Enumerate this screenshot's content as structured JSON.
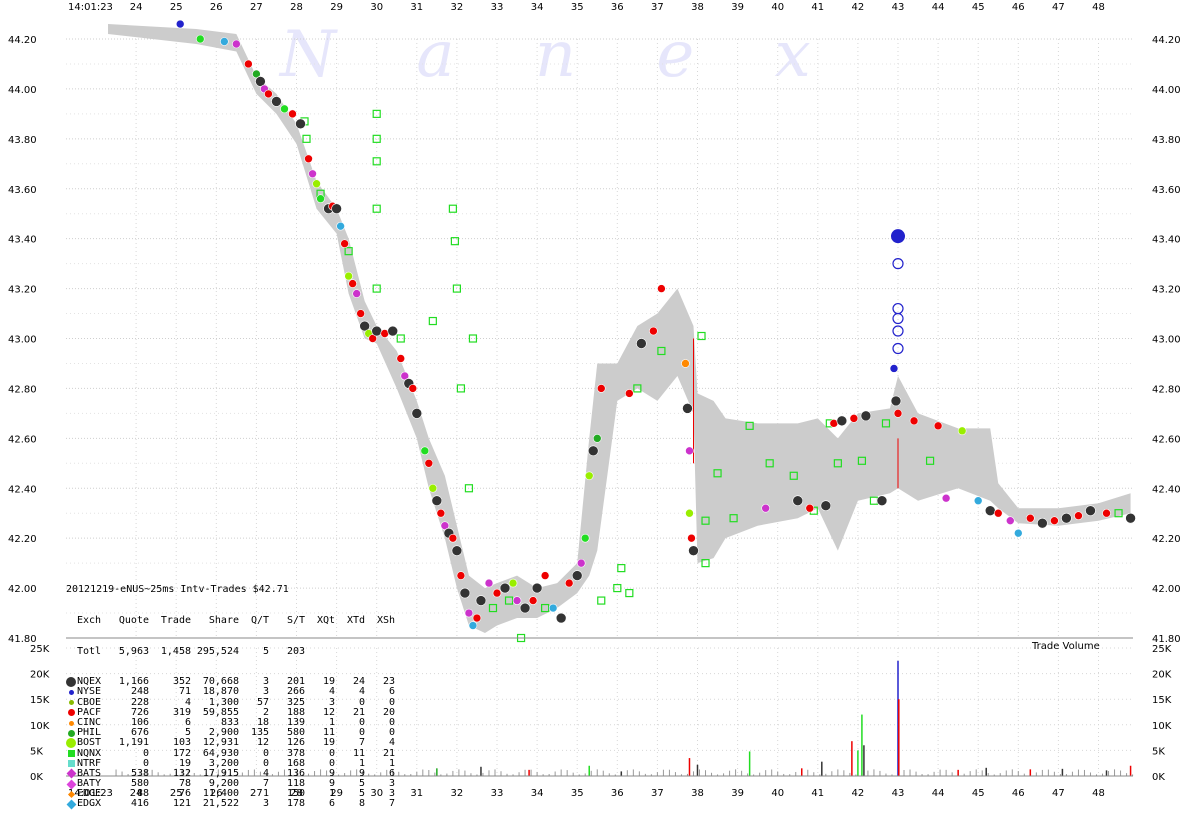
{
  "watermark": "N a n e x",
  "panel": {
    "title": "20121219-eNUS~25ms Intv-Trades $42.71",
    "header": [
      "Exch",
      "Quote",
      "Trade",
      "Share",
      "Q/T",
      "S/T",
      "XQt",
      "XTd",
      "XSh"
    ],
    "total": [
      "Totl",
      "5,963",
      "1,458",
      "295,524",
      "5",
      "203",
      "",
      "",
      ""
    ],
    "rows": [
      {
        "exch": "NQEX",
        "vals": [
          "1,166",
          "352",
          "70,668",
          "3",
          "201",
          "19",
          "24",
          "23"
        ],
        "color": "#333333",
        "marker": "circle-big"
      },
      {
        "exch": "NYSE",
        "vals": [
          "248",
          "71",
          "18,870",
          "3",
          "266",
          "4",
          "4",
          "6"
        ],
        "color": "#2222cc",
        "marker": "circle-small"
      },
      {
        "exch": "CBOE",
        "vals": [
          "228",
          "4",
          "1,300",
          "57",
          "325",
          "3",
          "0",
          "0"
        ],
        "color": "#88bb00",
        "marker": "circle-small"
      },
      {
        "exch": "PACF",
        "vals": [
          "726",
          "319",
          "59,855",
          "2",
          "188",
          "12",
          "21",
          "20"
        ],
        "color": "#ee0000",
        "marker": "circle"
      },
      {
        "exch": "CINC",
        "vals": [
          "106",
          "6",
          "833",
          "18",
          "139",
          "1",
          "0",
          "0"
        ],
        "color": "#ff8800",
        "marker": "circle-small"
      },
      {
        "exch": "PHIL",
        "vals": [
          "676",
          "5",
          "2,900",
          "135",
          "580",
          "11",
          "0",
          "0"
        ],
        "color": "#22aa22",
        "marker": "circle"
      },
      {
        "exch": "BOST",
        "vals": [
          "1,191",
          "103",
          "12,931",
          "12",
          "126",
          "19",
          "7",
          "4"
        ],
        "color": "#99ee00",
        "marker": "circle-big"
      },
      {
        "exch": "NQNX",
        "vals": [
          "0",
          "172",
          "64,930",
          "0",
          "378",
          "0",
          "11",
          "21"
        ],
        "color": "#22dd22",
        "marker": "square"
      },
      {
        "exch": "NTRF",
        "vals": [
          "0",
          "19",
          "3,200",
          "0",
          "168",
          "0",
          "1",
          "1"
        ],
        "color": "#66ddcc",
        "marker": "square"
      },
      {
        "exch": "BATS",
        "vals": [
          "538",
          "132",
          "17,915",
          "4",
          "136",
          "9",
          "9",
          "6"
        ],
        "color": "#cc33cc",
        "marker": "diamond"
      },
      {
        "exch": "BATY",
        "vals": [
          "580",
          "78",
          "9,200",
          "7",
          "118",
          "9",
          "5",
          "3"
        ],
        "color": "#dd44dd",
        "marker": "diamond"
      },
      {
        "exch": "EDGE",
        "vals": [
          "88",
          "76",
          "11,400",
          "1",
          "150",
          "1",
          "5",
          "3"
        ],
        "color": "#ff8800",
        "marker": "diamond-small"
      },
      {
        "exch": "EDGX",
        "vals": [
          "416",
          "121",
          "21,522",
          "3",
          "178",
          "6",
          "8",
          "7"
        ],
        "color": "#33aadd",
        "marker": "diamond"
      }
    ]
  },
  "vol_label": "Trade Volume",
  "colors": {
    "band": "#cccccc",
    "quote_sq": "#22dd22",
    "red": "#ee0000",
    "dark": "#333333",
    "blue": "#2222cc"
  },
  "chart_data": {
    "type": "scatter",
    "title": "20121219-eNUS~25ms Intv-Trades $42.71",
    "time_start_label": "14:01:23",
    "x_ticks": [
      "24",
      "25",
      "26",
      "27",
      "28",
      "29",
      "30",
      "31",
      "32",
      "33",
      "34",
      "35",
      "36",
      "37",
      "38",
      "39",
      "40",
      "41",
      "42",
      "43",
      "44",
      "45",
      "46",
      "47",
      "48"
    ],
    "price_ticks": [
      "44.20",
      "44.00",
      "43.80",
      "43.60",
      "43.40",
      "43.20",
      "43.00",
      "42.80",
      "42.60",
      "42.40",
      "42.20",
      "42.00",
      "41.80"
    ],
    "ylim": [
      41.8,
      44.2
    ],
    "volume_ticks": [
      "25K",
      "20K",
      "15K",
      "10K",
      "5K",
      "0K"
    ],
    "volume_ylim": [
      0,
      25000
    ],
    "grid": true,
    "band": [
      [
        23.3,
        44.26,
        44.22
      ],
      [
        25.5,
        44.24,
        44.18
      ],
      [
        26.5,
        44.22,
        44.15
      ],
      [
        27.0,
        44.05,
        43.98
      ],
      [
        27.5,
        43.98,
        43.9
      ],
      [
        28.0,
        43.86,
        43.78
      ],
      [
        28.5,
        43.63,
        43.52
      ],
      [
        29.0,
        43.52,
        43.42
      ],
      [
        29.3,
        43.4,
        43.18
      ],
      [
        29.7,
        43.15,
        43.0
      ],
      [
        30.0,
        43.05,
        42.98
      ],
      [
        30.5,
        42.95,
        42.8
      ],
      [
        31.0,
        42.75,
        42.6
      ],
      [
        31.3,
        42.6,
        42.4
      ],
      [
        31.7,
        42.45,
        42.2
      ],
      [
        32.0,
        42.25,
        42.0
      ],
      [
        32.3,
        42.05,
        41.85
      ],
      [
        32.7,
        42.0,
        41.82
      ],
      [
        33.0,
        42.02,
        41.85
      ],
      [
        33.5,
        42.05,
        41.88
      ],
      [
        34.0,
        42.0,
        41.88
      ],
      [
        34.5,
        42.02,
        41.92
      ],
      [
        35.0,
        42.1,
        41.98
      ],
      [
        35.3,
        42.6,
        42.05
      ],
      [
        35.5,
        42.9,
        42.15
      ],
      [
        36.0,
        42.9,
        42.75
      ],
      [
        36.5,
        43.05,
        42.8
      ],
      [
        37.0,
        43.1,
        42.75
      ],
      [
        37.5,
        43.2,
        42.85
      ],
      [
        37.9,
        43.05,
        42.7
      ],
      [
        38.0,
        42.78,
        42.1
      ],
      [
        38.4,
        42.75,
        42.12
      ],
      [
        38.7,
        42.68,
        42.2
      ],
      [
        39.5,
        42.66,
        42.25
      ],
      [
        40.5,
        42.66,
        42.28
      ],
      [
        41.0,
        42.68,
        42.32
      ],
      [
        41.5,
        42.6,
        42.15
      ],
      [
        42.0,
        42.7,
        42.35
      ],
      [
        42.8,
        42.72,
        42.38
      ],
      [
        43.0,
        42.85,
        42.4
      ],
      [
        43.5,
        42.7,
        42.35
      ],
      [
        44.5,
        42.64,
        42.4
      ],
      [
        45.3,
        42.64,
        42.35
      ],
      [
        45.5,
        42.42,
        42.32
      ],
      [
        46.0,
        42.32,
        42.26
      ],
      [
        47.0,
        42.32,
        42.25
      ],
      [
        48.0,
        42.34,
        42.27
      ],
      [
        48.8,
        42.38,
        42.3
      ]
    ],
    "trades": [
      [
        25.1,
        44.26,
        "#2222cc"
      ],
      [
        25.6,
        44.2,
        "#22dd22"
      ],
      [
        26.2,
        44.19,
        "#33aadd"
      ],
      [
        26.5,
        44.18,
        "#cc33cc"
      ],
      [
        26.8,
        44.1,
        "#ee0000"
      ],
      [
        27.0,
        44.06,
        "#22aa22"
      ],
      [
        27.1,
        44.03,
        "#333333"
      ],
      [
        27.2,
        44.0,
        "#cc33cc"
      ],
      [
        27.3,
        43.98,
        "#ee0000"
      ],
      [
        27.5,
        43.95,
        "#333333"
      ],
      [
        27.7,
        43.92,
        "#22dd22"
      ],
      [
        27.9,
        43.9,
        "#ee0000"
      ],
      [
        28.1,
        43.86,
        "#333333"
      ],
      [
        28.3,
        43.72,
        "#ee0000"
      ],
      [
        28.4,
        43.66,
        "#cc33cc"
      ],
      [
        28.5,
        43.62,
        "#99ee00"
      ],
      [
        28.6,
        43.56,
        "#22dd22"
      ],
      [
        28.8,
        43.52,
        "#333333"
      ],
      [
        28.9,
        43.53,
        "#ee0000"
      ],
      [
        29.0,
        43.52,
        "#333333"
      ],
      [
        29.1,
        43.45,
        "#33aadd"
      ],
      [
        29.2,
        43.38,
        "#ee0000"
      ],
      [
        29.3,
        43.25,
        "#99ee00"
      ],
      [
        29.4,
        43.22,
        "#ee0000"
      ],
      [
        29.5,
        43.18,
        "#cc33cc"
      ],
      [
        29.6,
        43.1,
        "#ee0000"
      ],
      [
        29.7,
        43.05,
        "#333333"
      ],
      [
        29.8,
        43.02,
        "#99ee00"
      ],
      [
        29.9,
        43.0,
        "#ee0000"
      ],
      [
        30.0,
        43.03,
        "#333333"
      ],
      [
        30.2,
        43.02,
        "#ee0000"
      ],
      [
        30.4,
        43.03,
        "#333333"
      ],
      [
        30.6,
        42.92,
        "#ee0000"
      ],
      [
        30.7,
        42.85,
        "#cc33cc"
      ],
      [
        30.8,
        42.82,
        "#333333"
      ],
      [
        30.9,
        42.8,
        "#ee0000"
      ],
      [
        31.0,
        42.7,
        "#333333"
      ],
      [
        31.2,
        42.55,
        "#22dd22"
      ],
      [
        31.3,
        42.5,
        "#ee0000"
      ],
      [
        31.4,
        42.4,
        "#99ee00"
      ],
      [
        31.5,
        42.35,
        "#333333"
      ],
      [
        31.6,
        42.3,
        "#ee0000"
      ],
      [
        31.7,
        42.25,
        "#cc33cc"
      ],
      [
        31.8,
        42.22,
        "#333333"
      ],
      [
        31.9,
        42.2,
        "#ee0000"
      ],
      [
        32.0,
        42.15,
        "#333333"
      ],
      [
        32.1,
        42.05,
        "#ee0000"
      ],
      [
        32.2,
        41.98,
        "#333333"
      ],
      [
        32.3,
        41.9,
        "#cc33cc"
      ],
      [
        32.4,
        41.85,
        "#33aadd"
      ],
      [
        32.5,
        41.88,
        "#ee0000"
      ],
      [
        32.6,
        41.95,
        "#333333"
      ],
      [
        32.8,
        42.02,
        "#cc33cc"
      ],
      [
        33.0,
        41.98,
        "#ee0000"
      ],
      [
        33.2,
        42.0,
        "#333333"
      ],
      [
        33.4,
        42.02,
        "#99ee00"
      ],
      [
        33.5,
        41.95,
        "#cc33cc"
      ],
      [
        33.7,
        41.92,
        "#333333"
      ],
      [
        33.9,
        41.95,
        "#ee0000"
      ],
      [
        34.0,
        42.0,
        "#333333"
      ],
      [
        34.2,
        42.05,
        "#ee0000"
      ],
      [
        34.4,
        41.92,
        "#33aadd"
      ],
      [
        34.6,
        41.88,
        "#333333"
      ],
      [
        34.8,
        42.02,
        "#ee0000"
      ],
      [
        35.0,
        42.05,
        "#333333"
      ],
      [
        35.1,
        42.1,
        "#cc33cc"
      ],
      [
        35.2,
        42.2,
        "#22dd22"
      ],
      [
        35.3,
        42.45,
        "#99ee00"
      ],
      [
        35.4,
        42.55,
        "#333333"
      ],
      [
        35.5,
        42.6,
        "#22aa22"
      ],
      [
        35.6,
        42.8,
        "#ee0000"
      ],
      [
        36.3,
        42.78,
        "#ee0000"
      ],
      [
        36.6,
        42.98,
        "#333333"
      ],
      [
        36.9,
        43.03,
        "#ee0000"
      ],
      [
        37.1,
        43.2,
        "#ee0000"
      ],
      [
        37.7,
        42.9,
        "#ff8800"
      ],
      [
        37.75,
        42.72,
        "#333333"
      ],
      [
        37.8,
        42.55,
        "#cc33cc"
      ],
      [
        37.8,
        42.3,
        "#99ee00"
      ],
      [
        37.85,
        42.2,
        "#ee0000"
      ],
      [
        37.9,
        42.15,
        "#333333"
      ],
      [
        39.7,
        42.32,
        "#cc33cc"
      ],
      [
        40.5,
        42.35,
        "#333333"
      ],
      [
        40.8,
        42.32,
        "#ee0000"
      ],
      [
        41.2,
        42.33,
        "#333333"
      ],
      [
        41.4,
        42.66,
        "#ee0000"
      ],
      [
        41.6,
        42.67,
        "#333333"
      ],
      [
        41.9,
        42.68,
        "#ee0000"
      ],
      [
        42.2,
        42.69,
        "#333333"
      ],
      [
        42.6,
        42.35,
        "#333333"
      ],
      [
        42.9,
        42.88,
        "#2222cc"
      ],
      [
        42.95,
        42.75,
        "#333333"
      ],
      [
        43.0,
        42.7,
        "#ee0000"
      ],
      [
        43.4,
        42.67,
        "#ee0000"
      ],
      [
        44.0,
        42.65,
        "#ee0000"
      ],
      [
        44.2,
        42.36,
        "#cc33cc"
      ],
      [
        44.6,
        42.63,
        "#99ee00"
      ],
      [
        45.0,
        42.35,
        "#33aadd"
      ],
      [
        45.3,
        42.31,
        "#333333"
      ],
      [
        45.5,
        42.3,
        "#ee0000"
      ],
      [
        45.8,
        42.27,
        "#cc33cc"
      ],
      [
        46.0,
        42.22,
        "#33aadd"
      ],
      [
        46.3,
        42.28,
        "#ee0000"
      ],
      [
        46.6,
        42.26,
        "#333333"
      ],
      [
        46.9,
        42.27,
        "#ee0000"
      ],
      [
        47.2,
        42.28,
        "#333333"
      ],
      [
        47.5,
        42.29,
        "#ee0000"
      ],
      [
        47.8,
        42.31,
        "#333333"
      ],
      [
        48.2,
        42.3,
        "#ee0000"
      ],
      [
        48.8,
        42.28,
        "#333333"
      ]
    ],
    "quotes": [
      [
        28.2,
        43.87,
        "#22dd22"
      ],
      [
        28.25,
        43.8,
        "#22dd22"
      ],
      [
        28.6,
        43.58,
        "#22dd22"
      ],
      [
        29.3,
        43.35,
        "#22dd22"
      ],
      [
        30.0,
        43.9,
        "#22dd22"
      ],
      [
        30.0,
        43.8,
        "#22dd22"
      ],
      [
        30.0,
        43.71,
        "#22dd22"
      ],
      [
        30.0,
        43.52,
        "#22dd22"
      ],
      [
        30.0,
        43.2,
        "#22dd22"
      ],
      [
        30.6,
        43.0,
        "#22dd22"
      ],
      [
        31.4,
        43.07,
        "#22dd22"
      ],
      [
        31.9,
        43.52,
        "#22dd22"
      ],
      [
        31.95,
        43.39,
        "#22dd22"
      ],
      [
        32.0,
        43.2,
        "#22dd22"
      ],
      [
        32.1,
        42.8,
        "#22dd22"
      ],
      [
        32.3,
        42.4,
        "#22dd22"
      ],
      [
        32.4,
        43.0,
        "#22dd22"
      ],
      [
        32.9,
        41.92,
        "#22dd22"
      ],
      [
        33.3,
        41.95,
        "#22dd22"
      ],
      [
        33.6,
        41.8,
        "#22dd22"
      ],
      [
        34.2,
        41.92,
        "#22dd22"
      ],
      [
        35.6,
        41.95,
        "#22dd22"
      ],
      [
        36.0,
        42.0,
        "#22dd22"
      ],
      [
        36.1,
        42.08,
        "#22dd22"
      ],
      [
        36.3,
        41.98,
        "#22dd22"
      ],
      [
        36.5,
        42.8,
        "#22dd22"
      ],
      [
        37.1,
        42.95,
        "#22dd22"
      ],
      [
        38.1,
        43.01,
        "#22dd22"
      ],
      [
        38.2,
        42.1,
        "#22dd22"
      ],
      [
        38.5,
        42.46,
        "#22dd22"
      ],
      [
        38.2,
        42.27,
        "#22dd22"
      ],
      [
        38.9,
        42.28,
        "#22dd22"
      ],
      [
        39.3,
        42.65,
        "#22dd22"
      ],
      [
        39.8,
        42.5,
        "#22dd22"
      ],
      [
        40.4,
        42.45,
        "#22dd22"
      ],
      [
        40.9,
        42.31,
        "#22dd22"
      ],
      [
        41.3,
        42.66,
        "#22dd22"
      ],
      [
        41.5,
        42.5,
        "#22dd22"
      ],
      [
        42.1,
        42.51,
        "#22dd22"
      ],
      [
        42.4,
        42.35,
        "#22dd22"
      ],
      [
        42.7,
        42.66,
        "#22dd22"
      ],
      [
        43.8,
        42.51,
        "#22dd22"
      ],
      [
        48.5,
        42.3,
        "#22dd22"
      ]
    ],
    "spike_column": {
      "x": 43.0,
      "values": [
        43.41,
        43.3,
        43.12,
        43.08,
        43.03,
        42.96
      ]
    },
    "volume_bars": [
      [
        31.5,
        1500,
        "#22aa22"
      ],
      [
        32.6,
        1800,
        "#333333"
      ],
      [
        33.8,
        1200,
        "#ee0000"
      ],
      [
        35.3,
        2000,
        "#22dd22"
      ],
      [
        36.1,
        900,
        "#333333"
      ],
      [
        37.8,
        3500,
        "#ee0000"
      ],
      [
        38.0,
        2200,
        "#333333"
      ],
      [
        39.3,
        4800,
        "#22dd22"
      ],
      [
        40.6,
        1500,
        "#ee0000"
      ],
      [
        41.1,
        2800,
        "#333333"
      ],
      [
        41.85,
        6800,
        "#ee0000"
      ],
      [
        42.0,
        5000,
        "#22dd22"
      ],
      [
        42.1,
        12000,
        "#22dd22"
      ],
      [
        42.15,
        6000,
        "#333333"
      ],
      [
        43.0,
        22500,
        "#2222cc"
      ],
      [
        43.02,
        15000,
        "#ee0000"
      ],
      [
        44.5,
        1200,
        "#ee0000"
      ],
      [
        45.2,
        1600,
        "#333333"
      ],
      [
        46.3,
        1300,
        "#ee0000"
      ],
      [
        47.1,
        1400,
        "#333333"
      ],
      [
        48.2,
        1100,
        "#333333"
      ],
      [
        48.8,
        2000,
        "#ee0000"
      ]
    ]
  }
}
